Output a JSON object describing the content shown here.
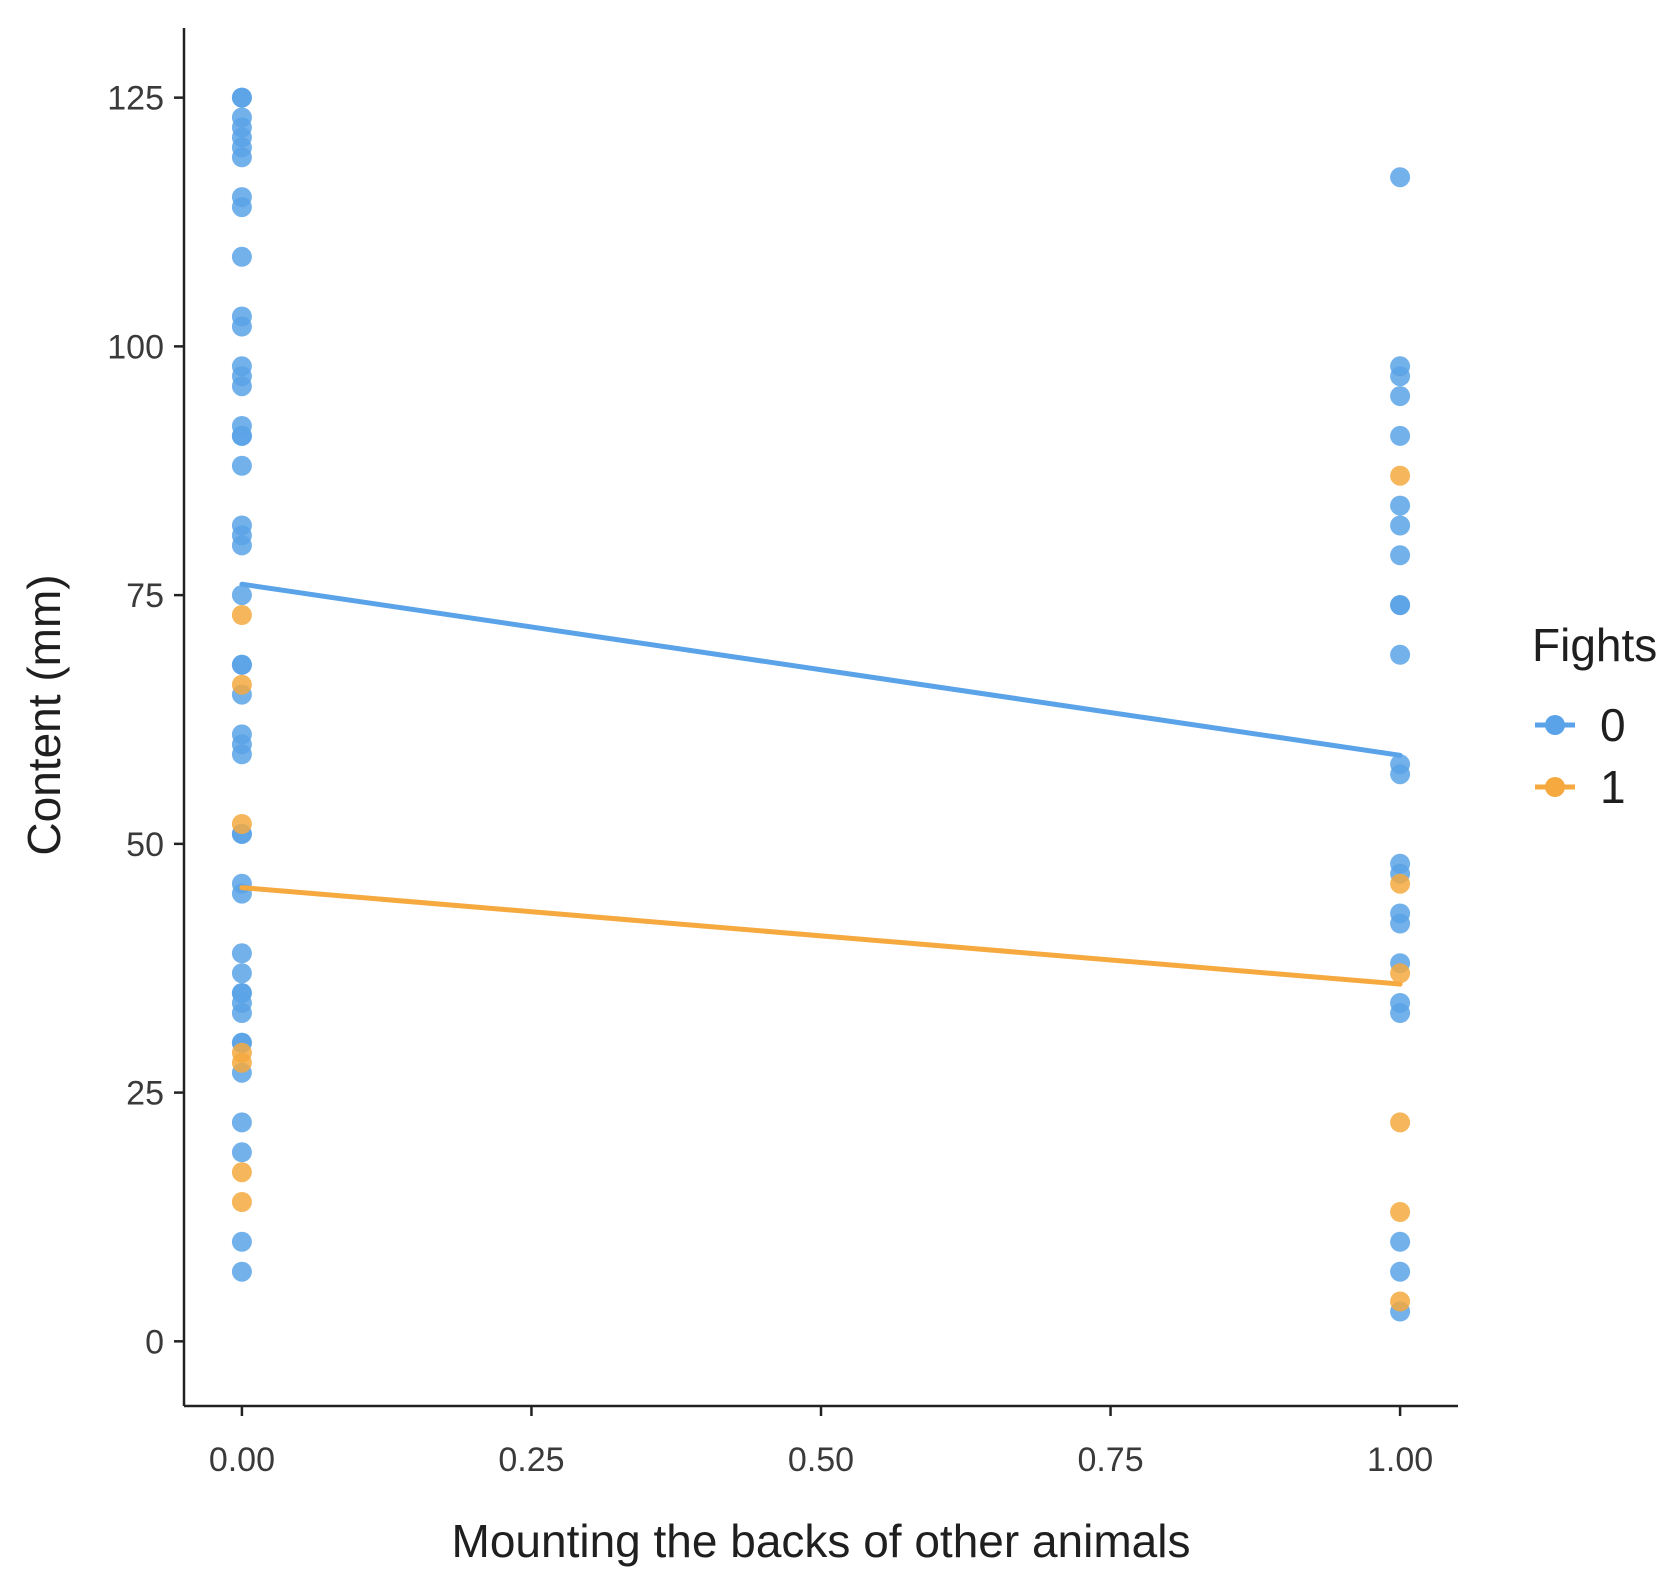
{
  "chart_data": {
    "type": "scatter",
    "title": "",
    "xlabel": "Mounting the backs of other animals",
    "ylabel": "Content (mm)",
    "xlim": [
      -0.05,
      1.05
    ],
    "ylim": [
      -6.5,
      132
    ],
    "x_ticks": [
      0,
      0.25,
      0.5,
      0.75,
      1
    ],
    "x_tick_labels": [
      "0.00",
      "0.25",
      "0.50",
      "0.75",
      "1.00"
    ],
    "y_ticks": [
      0,
      25,
      50,
      75,
      100,
      125
    ],
    "y_tick_labels": [
      "0",
      "25",
      "50",
      "75",
      "100",
      "125"
    ],
    "grid": false,
    "legend": {
      "title": "Fights",
      "position": "right"
    },
    "series": [
      {
        "name": "0",
        "color": "#5aa3e8",
        "points": [
          [
            0,
            125
          ],
          [
            0,
            125
          ],
          [
            0,
            123
          ],
          [
            0,
            122
          ],
          [
            0,
            121
          ],
          [
            0,
            120
          ],
          [
            0,
            119
          ],
          [
            0,
            115
          ],
          [
            0,
            114
          ],
          [
            0,
            109
          ],
          [
            0,
            103
          ],
          [
            0,
            102
          ],
          [
            0,
            98
          ],
          [
            0,
            97
          ],
          [
            0,
            96
          ],
          [
            0,
            92
          ],
          [
            0,
            91
          ],
          [
            0,
            91
          ],
          [
            0,
            88
          ],
          [
            0,
            82
          ],
          [
            0,
            81
          ],
          [
            0,
            80
          ],
          [
            0,
            75
          ],
          [
            0,
            68
          ],
          [
            0,
            68
          ],
          [
            0,
            65
          ],
          [
            0,
            61
          ],
          [
            0,
            60
          ],
          [
            0,
            59
          ],
          [
            0,
            51
          ],
          [
            0,
            51
          ],
          [
            0,
            46
          ],
          [
            0,
            45
          ],
          [
            0,
            39
          ],
          [
            0,
            37
          ],
          [
            0,
            35
          ],
          [
            0,
            35
          ],
          [
            0,
            34
          ],
          [
            0,
            33
          ],
          [
            0,
            30
          ],
          [
            0,
            30
          ],
          [
            0,
            27
          ],
          [
            0,
            22
          ],
          [
            0,
            19
          ],
          [
            0,
            10
          ],
          [
            0,
            7
          ],
          [
            1,
            117
          ],
          [
            1,
            98
          ],
          [
            1,
            97
          ],
          [
            1,
            95
          ],
          [
            1,
            91
          ],
          [
            1,
            84
          ],
          [
            1,
            82
          ],
          [
            1,
            79
          ],
          [
            1,
            74
          ],
          [
            1,
            74
          ],
          [
            1,
            69
          ],
          [
            1,
            58
          ],
          [
            1,
            57
          ],
          [
            1,
            48
          ],
          [
            1,
            47
          ],
          [
            1,
            43
          ],
          [
            1,
            42
          ],
          [
            1,
            38
          ],
          [
            1,
            34
          ],
          [
            1,
            33
          ],
          [
            1,
            10
          ],
          [
            1,
            7
          ],
          [
            1,
            3
          ]
        ],
        "fit": [
          [
            0,
            76.1
          ],
          [
            1,
            58.9
          ]
        ]
      },
      {
        "name": "1",
        "color": "#f5a93e",
        "points": [
          [
            0,
            73
          ],
          [
            0,
            66
          ],
          [
            0,
            52
          ],
          [
            0,
            29
          ],
          [
            0,
            28
          ],
          [
            0,
            17
          ],
          [
            0,
            14
          ],
          [
            1,
            87
          ],
          [
            1,
            46
          ],
          [
            1,
            37
          ],
          [
            1,
            22
          ],
          [
            1,
            13
          ],
          [
            1,
            4
          ]
        ],
        "fit": [
          [
            0,
            45.6
          ],
          [
            1,
            35.9
          ]
        ]
      }
    ]
  }
}
